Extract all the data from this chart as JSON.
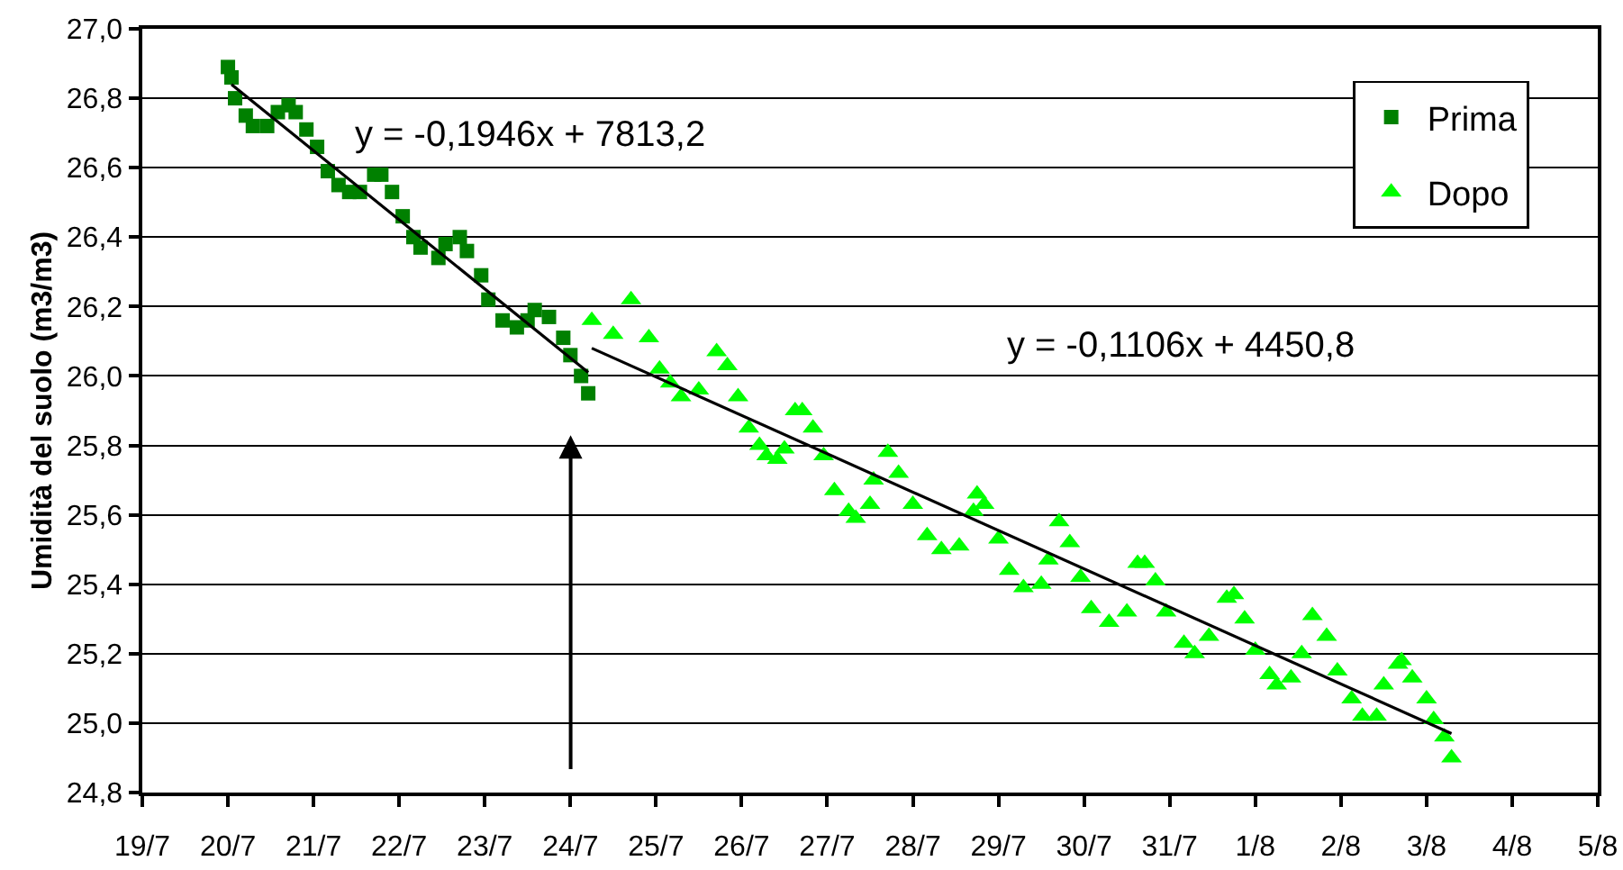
{
  "chart_data": {
    "type": "scatter",
    "ylabel": "Umidità del suolo (m3/m3)",
    "xlim": [
      "--07-19",
      "--08-05"
    ],
    "xticks": [
      {
        "value": "--07-19",
        "label": "19/7"
      },
      {
        "value": "--07-20",
        "label": "20/7"
      },
      {
        "value": "--07-21",
        "label": "21/7"
      },
      {
        "value": "--07-22",
        "label": "22/7"
      },
      {
        "value": "--07-23",
        "label": "23/7"
      },
      {
        "value": "--07-24",
        "label": "24/7"
      },
      {
        "value": "--07-25",
        "label": "25/7"
      },
      {
        "value": "--07-26",
        "label": "26/7"
      },
      {
        "value": "--07-27",
        "label": "27/7"
      },
      {
        "value": "--07-28",
        "label": "28/7"
      },
      {
        "value": "--07-29",
        "label": "29/7"
      },
      {
        "value": "--07-30",
        "label": "30/7"
      },
      {
        "value": "--07-31",
        "label": "31/7"
      },
      {
        "value": "--08-01",
        "label": "1/8"
      },
      {
        "value": "--08-02",
        "label": "2/8"
      },
      {
        "value": "--08-03",
        "label": "3/8"
      },
      {
        "value": "--08-04",
        "label": "4/8"
      },
      {
        "value": "--08-05",
        "label": "5/8"
      }
    ],
    "ylim": [
      24.8,
      27.0
    ],
    "yticks": [
      {
        "value": 24.8,
        "label": "24,8"
      },
      {
        "value": 25.0,
        "label": "25,0"
      },
      {
        "value": 25.2,
        "label": "25,2"
      },
      {
        "value": 25.4,
        "label": "25,4"
      },
      {
        "value": 25.6,
        "label": "25,6"
      },
      {
        "value": 25.8,
        "label": "25,8"
      },
      {
        "value": 26.0,
        "label": "26,0"
      },
      {
        "value": 26.2,
        "label": "26,2"
      },
      {
        "value": 26.4,
        "label": "26,4"
      },
      {
        "value": 26.6,
        "label": "26,6"
      },
      {
        "value": 26.8,
        "label": "26,8"
      },
      {
        "value": 27.0,
        "label": "27,0"
      }
    ],
    "grid": "y",
    "legend": "top right",
    "series": [
      {
        "name": "Prima",
        "color": "#008000",
        "marker": "square",
        "x": [
          "--07-20T00:00",
          "--07-20T01:00",
          "--07-20T02:00",
          "--07-20T05:00",
          "--07-20T07:00",
          "--07-20T11:00",
          "--07-20T14:00",
          "--07-20T17:00",
          "--07-20T19:00",
          "--07-20T22:00",
          "--07-21T01:00",
          "--07-21T04:00",
          "--07-21T07:00",
          "--07-21T10:00",
          "--07-21T13:00",
          "--07-21T17:00",
          "--07-21T19:00",
          "--07-21T22:00",
          "--07-22T01:00",
          "--07-22T04:00",
          "--07-22T06:00",
          "--07-22T11:00",
          "--07-22T13:00",
          "--07-22T17:00",
          "--07-22T19:00",
          "--07-22T23:00",
          "--07-23T01:00",
          "--07-23T05:00",
          "--07-23T09:00",
          "--07-23T12:00",
          "--07-23T14:00",
          "--07-23T18:00",
          "--07-23T22:00",
          "--07-24T00:00",
          "--07-24T03:00",
          "--07-24T05:00"
        ],
        "values": [
          26.89,
          26.86,
          26.8,
          26.75,
          26.72,
          26.72,
          26.76,
          26.78,
          26.76,
          26.71,
          26.66,
          26.59,
          26.55,
          26.53,
          26.53,
          26.58,
          26.58,
          26.53,
          26.46,
          26.4,
          26.37,
          26.34,
          26.38,
          26.4,
          26.36,
          26.29,
          26.22,
          26.16,
          26.14,
          26.16,
          26.19,
          26.17,
          26.11,
          26.06,
          26.0,
          25.95
        ]
      },
      {
        "name": "Dopo",
        "color": "#00ff00",
        "marker": "triangle",
        "x": [
          "--07-24T06:00",
          "--07-24T12:00",
          "--07-24T17:00",
          "--07-24T22:00",
          "--07-25T01:00",
          "--07-25T04:00",
          "--07-25T07:00",
          "--07-25T12:00",
          "--07-25T17:00",
          "--07-25T20:00",
          "--07-25T23:00",
          "--07-26T02:00",
          "--07-26T05:00",
          "--07-26T07:00",
          "--07-26T10:00",
          "--07-26T12:00",
          "--07-26T15:00",
          "--07-26T17:00",
          "--07-26T20:00",
          "--07-26T23:00",
          "--07-27T02:00",
          "--07-27T06:00",
          "--07-27T08:00",
          "--07-27T12:00",
          "--07-27T13:00",
          "--07-27T17:00",
          "--07-27T20:00",
          "--07-28T00:00",
          "--07-28T04:00",
          "--07-28T08:00",
          "--07-28T13:00",
          "--07-28T17:00",
          "--07-28T18:00",
          "--07-28T20:00",
          "--07-29T00:00",
          "--07-29T03:00",
          "--07-29T07:00",
          "--07-29T12:00",
          "--07-29T14:00",
          "--07-29T17:00",
          "--07-29T20:00",
          "--07-29T23:00",
          "--07-30T02:00",
          "--07-30T07:00",
          "--07-30T12:00",
          "--07-30T15:00",
          "--07-30T17:00",
          "--07-30T20:00",
          "--07-30T23:00",
          "--07-31T04:00",
          "--07-31T07:00",
          "--07-31T11:00",
          "--07-31T16:00",
          "--07-31T18:00",
          "--07-31T21:00",
          "--08-01T00:00",
          "--08-01T04:00",
          "--08-01T06:00",
          "--08-01T10:00",
          "--08-01T13:00",
          "--08-01T16:00",
          "--08-01T20:00",
          "--08-01T23:00",
          "--08-02T03:00",
          "--08-02T06:00",
          "--08-02T10:00",
          "--08-02T12:00",
          "--08-02T16:00",
          "--08-02T17:00",
          "--08-02T20:00",
          "--08-03T00:00",
          "--08-03T02:00",
          "--08-03T05:00",
          "--08-03T07:00"
        ],
        "values": [
          26.16,
          26.12,
          26.22,
          26.11,
          26.02,
          25.98,
          25.94,
          25.96,
          26.07,
          26.03,
          25.94,
          25.85,
          25.8,
          25.77,
          25.76,
          25.79,
          25.9,
          25.9,
          25.85,
          25.77,
          25.67,
          25.61,
          25.59,
          25.63,
          25.7,
          25.78,
          25.72,
          25.63,
          25.54,
          25.5,
          25.51,
          25.61,
          25.66,
          25.63,
          25.53,
          25.44,
          25.39,
          25.4,
          25.47,
          25.58,
          25.52,
          25.42,
          25.33,
          25.29,
          25.32,
          25.46,
          25.46,
          25.41,
          25.32,
          25.23,
          25.2,
          25.25,
          25.36,
          25.37,
          25.3,
          25.21,
          25.14,
          25.11,
          25.13,
          25.2,
          25.31,
          25.25,
          25.15,
          25.07,
          25.02,
          25.02,
          25.11,
          25.17,
          25.18,
          25.13,
          25.07,
          25.01,
          24.96,
          24.9
        ]
      },
      {
        "type": "line",
        "color": "#000000",
        "marker": "none",
        "x": [
          "--07-20T01:00",
          "--07-24T05:00"
        ],
        "values": [
          26.84,
          26.01
        ]
      },
      {
        "type": "line",
        "color": "#000000",
        "marker": "none",
        "x": [
          "--07-24T06:00",
          "--08-03T07:00"
        ],
        "values": [
          26.08,
          24.97
        ]
      }
    ],
    "annotations": [
      "y = -0,1946x + 7813,2",
      "y = -0,1106x + 4450,8"
    ]
  }
}
